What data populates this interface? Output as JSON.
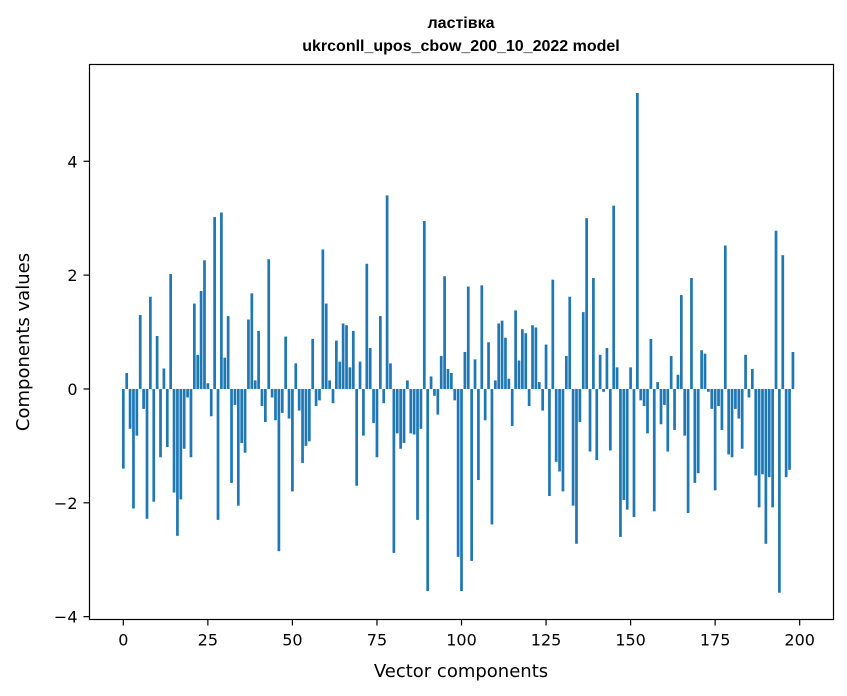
{
  "chart_data": {
    "type": "bar",
    "title_line1": "ластівка",
    "title_line2": "ukrconll_upos_cbow_200_10_2022 model",
    "xlabel": "Vector components",
    "ylabel": "Components values",
    "xlim": [
      -10,
      210
    ],
    "ylim": [
      -4.05,
      5.7
    ],
    "xticks": [
      0,
      25,
      50,
      75,
      100,
      125,
      150,
      175,
      200
    ],
    "xtick_labels": [
      "0",
      "25",
      "50",
      "75",
      "100",
      "125",
      "150",
      "175",
      "200"
    ],
    "yticks": [
      -4,
      -2,
      0,
      2,
      4
    ],
    "ytick_labels": [
      "−4",
      "−2",
      "0",
      "2",
      "4"
    ],
    "grid": false,
    "bar_color": "#1f77b4",
    "values": [
      -1.4,
      0.28,
      -0.7,
      -2.1,
      -0.82,
      1.3,
      -0.35,
      -2.28,
      1.62,
      -1.98,
      0.93,
      -1.2,
      0.36,
      -1.02,
      2.02,
      -1.82,
      -2.58,
      -1.94,
      -1.05,
      -0.15,
      -1.2,
      1.5,
      0.6,
      1.72,
      2.26,
      0.1,
      -0.48,
      3.02,
      -2.3,
      3.1,
      0.55,
      1.28,
      -1.65,
      -0.28,
      -2.05,
      -0.95,
      -1.12,
      1.22,
      1.68,
      0.15,
      1.02,
      -0.3,
      -0.58,
      2.28,
      -0.15,
      -0.55,
      -2.85,
      -0.42,
      0.92,
      -0.52,
      -1.8,
      0.45,
      -0.38,
      -1.3,
      -1.0,
      -0.92,
      0.88,
      -0.3,
      -0.2,
      2.45,
      1.5,
      0.15,
      -0.25,
      0.85,
      0.48,
      1.15,
      1.12,
      0.38,
      1.02,
      -1.7,
      0.48,
      -0.82,
      2.2,
      0.72,
      -0.6,
      -1.2,
      1.28,
      -0.25,
      3.4,
      0.45,
      -2.88,
      -0.78,
      -1.05,
      -0.95,
      0.15,
      -0.78,
      -0.8,
      -2.3,
      -0.7,
      2.95,
      -3.55,
      0.22,
      -0.12,
      -0.45,
      0.58,
      1.98,
      0.35,
      0.28,
      -0.2,
      -2.95,
      -3.55,
      0.65,
      1.8,
      -3.02,
      0.52,
      -1.6,
      1.82,
      -0.55,
      0.82,
      -2.38,
      0.15,
      1.15,
      1.2,
      0.9,
      0.18,
      -0.65,
      1.38,
      0.5,
      1.05,
      0.98,
      -0.3,
      1.12,
      1.08,
      0.12,
      -0.38,
      0.78,
      -1.88,
      1.92,
      -1.28,
      -1.45,
      -1.8,
      0.58,
      1.62,
      -2.05,
      -2.72,
      -0.58,
      1.35,
      3.0,
      -1.1,
      1.95,
      -1.25,
      0.6,
      -0.05,
      0.72,
      -1.08,
      3.22,
      0.38,
      -2.6,
      -1.95,
      -2.12,
      0.38,
      -2.25,
      5.2,
      -0.2,
      -0.3,
      -0.78,
      0.88,
      -2.15,
      0.12,
      -0.62,
      -0.28,
      -1.1,
      0.58,
      -0.72,
      0.25,
      1.65,
      -0.82,
      -2.18,
      1.95,
      -1.65,
      -1.48,
      0.68,
      0.62,
      -0.05,
      -0.35,
      -1.78,
      -0.3,
      -0.72,
      2.52,
      -1.15,
      -1.2,
      -0.35,
      -0.52,
      -1.05,
      0.6,
      -0.15,
      0.35,
      -1.52,
      -2.08,
      -1.5,
      -2.72,
      -1.55,
      -2.08,
      2.78,
      -3.58,
      2.35,
      -1.55,
      -1.42,
      0.65
    ]
  }
}
